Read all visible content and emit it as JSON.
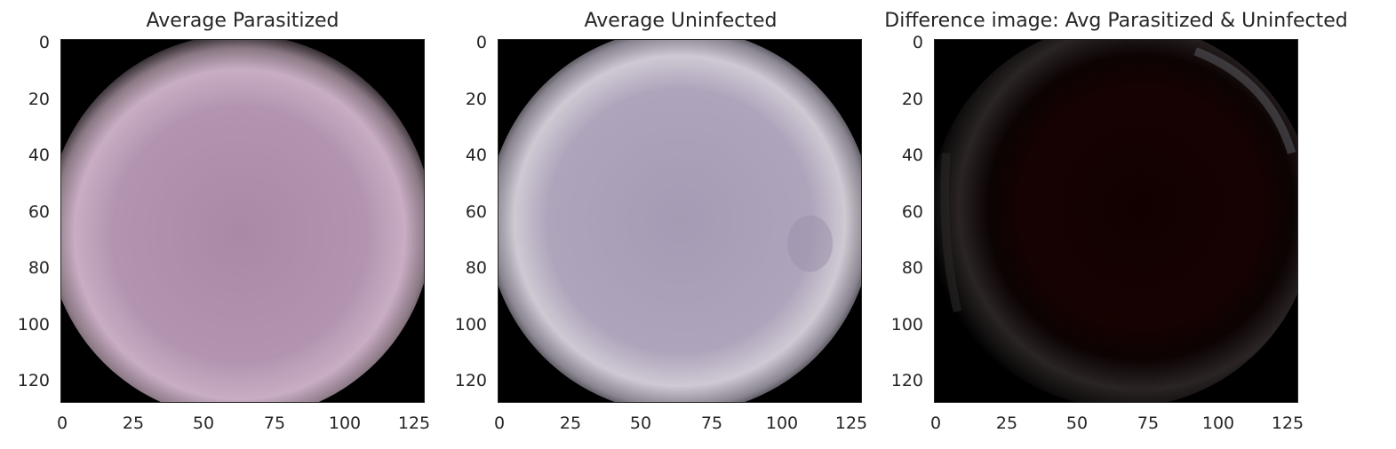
{
  "panels": [
    {
      "title": "Average Parasitized",
      "image_description": "pinkish-purple cell disc on black background",
      "colors": {
        "center": "#a98aa8",
        "edge": "#d8c6d2",
        "background": "#000000"
      },
      "y_ticks": [
        "0",
        "20",
        "40",
        "60",
        "80",
        "100",
        "120"
      ],
      "x_ticks": [
        "0",
        "25",
        "50",
        "75",
        "100",
        "125"
      ]
    },
    {
      "title": "Average Uninfected",
      "image_description": "lavender-gray cell disc on black background",
      "colors": {
        "center": "#a79cb5",
        "edge": "#d9d4dc",
        "background": "#000000"
      },
      "y_ticks": [
        "0",
        "20",
        "40",
        "60",
        "80",
        "100",
        "120"
      ],
      "x_ticks": [
        "0",
        "25",
        "50",
        "75",
        "100",
        "125"
      ]
    },
    {
      "title": "Difference image: Avg Parasitized & Uninfected",
      "image_description": "near-black image with faint dark red disc and faint gray ring",
      "colors": {
        "center": "#140000",
        "edge": "#3a3434",
        "background": "#000000"
      },
      "y_ticks": [
        "0",
        "20",
        "40",
        "60",
        "80",
        "100",
        "120"
      ],
      "x_ticks": [
        "0",
        "25",
        "50",
        "75",
        "100",
        "125"
      ]
    }
  ],
  "axis": {
    "x_range": [
      0,
      127
    ],
    "y_range": [
      0,
      127
    ],
    "y_inverted": true
  }
}
